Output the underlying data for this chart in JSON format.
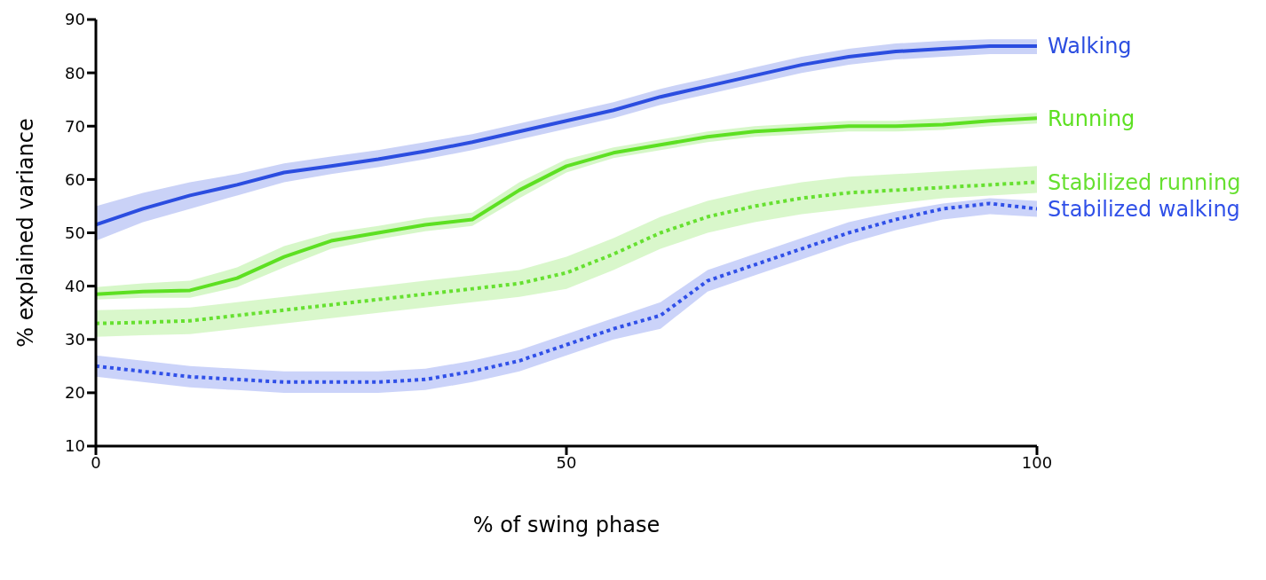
{
  "chart_data": {
    "type": "line",
    "xlabel": "% of swing phase",
    "ylabel": "% explained variance",
    "x": [
      0,
      5,
      10,
      15,
      20,
      25,
      30,
      35,
      40,
      45,
      50,
      55,
      60,
      65,
      70,
      75,
      80,
      85,
      90,
      95,
      100
    ],
    "xlim": [
      0,
      100
    ],
    "xticks": [
      0,
      50,
      100
    ],
    "ylim": [
      10,
      90
    ],
    "yticks": [
      10,
      20,
      30,
      40,
      50,
      60,
      70,
      80,
      90
    ],
    "grid": false,
    "legend": false,
    "marker": "none",
    "series": [
      {
        "name": "Walking",
        "color": "#2b4de0",
        "line_style": "solid",
        "values": [
          51.5,
          54.5,
          57,
          59,
          61.3,
          62.5,
          63.8,
          65.3,
          67,
          69,
          71,
          73,
          75.5,
          77.5,
          79.5,
          81.5,
          83,
          84,
          84.5,
          85,
          85
        ],
        "lower": [
          48.5,
          52,
          54.5,
          57,
          59.5,
          61,
          62.3,
          63.8,
          65.5,
          67.5,
          69.5,
          71.5,
          74,
          76,
          78,
          80,
          81.5,
          82.5,
          83,
          83.5,
          83.5
        ],
        "upper": [
          55,
          57.5,
          59.5,
          61,
          63,
          64.3,
          65.5,
          67,
          68.5,
          70.5,
          72.5,
          74.5,
          77,
          79,
          81,
          83,
          84.5,
          85.5,
          86,
          86.3,
          86.3
        ]
      },
      {
        "name": "Running",
        "color": "#5de022",
        "line_style": "solid",
        "values": [
          38.5,
          39,
          39.2,
          41.5,
          45.5,
          48.5,
          50,
          51.5,
          52.5,
          58,
          62.5,
          65,
          66.5,
          68,
          69,
          69.5,
          70,
          70,
          70.3,
          71,
          71.5
        ],
        "lower": [
          37.5,
          37.8,
          37.8,
          39.8,
          43.5,
          47,
          48.8,
          50.3,
          51.3,
          56.5,
          61.3,
          64,
          65.5,
          67,
          68,
          68.5,
          69,
          69,
          69.3,
          70,
          70.5
        ],
        "upper": [
          39.8,
          40.5,
          41,
          43.5,
          47.5,
          50,
          51.3,
          52.8,
          53.8,
          59.5,
          63.8,
          66,
          67.5,
          69,
          70,
          70.5,
          71,
          71,
          71.5,
          72,
          72.5
        ]
      },
      {
        "name": "Stabilized running",
        "color": "#66e030",
        "line_style": "dotted",
        "values": [
          33,
          33.2,
          33.5,
          34.5,
          35.5,
          36.5,
          37.5,
          38.5,
          39.5,
          40.5,
          42.5,
          46,
          50,
          53,
          55,
          56.5,
          57.5,
          58,
          58.5,
          59,
          59.5
        ],
        "lower": [
          30.5,
          30.8,
          31,
          32,
          33,
          34,
          35,
          36,
          37,
          38,
          39.5,
          43,
          47,
          50,
          52,
          53.5,
          54.5,
          55.5,
          56.5,
          57,
          57.5
        ],
        "upper": [
          35.5,
          35.7,
          36,
          37,
          38,
          39,
          40,
          41,
          42,
          43,
          45.5,
          49,
          53,
          56,
          58,
          59.5,
          60.5,
          61,
          61.5,
          62,
          62.5
        ]
      },
      {
        "name": "Stabilized walking",
        "color": "#3050e8",
        "line_style": "dotted",
        "values": [
          25,
          24,
          23,
          22.5,
          22,
          22,
          22,
          22.5,
          24,
          26,
          29,
          32,
          34.5,
          41,
          44,
          47,
          50,
          52.5,
          54.5,
          55.5,
          54.5
        ],
        "lower": [
          23,
          22,
          21,
          20.5,
          20,
          20,
          20,
          20.5,
          22,
          24,
          27,
          30,
          32,
          39,
          42,
          45,
          48,
          50.5,
          52.5,
          53.5,
          53
        ],
        "upper": [
          27,
          26,
          25,
          24.5,
          24,
          24,
          24,
          24.5,
          26,
          28,
          31,
          34,
          37,
          43,
          46,
          49,
          52,
          54,
          55.5,
          56.5,
          56
        ]
      }
    ]
  }
}
